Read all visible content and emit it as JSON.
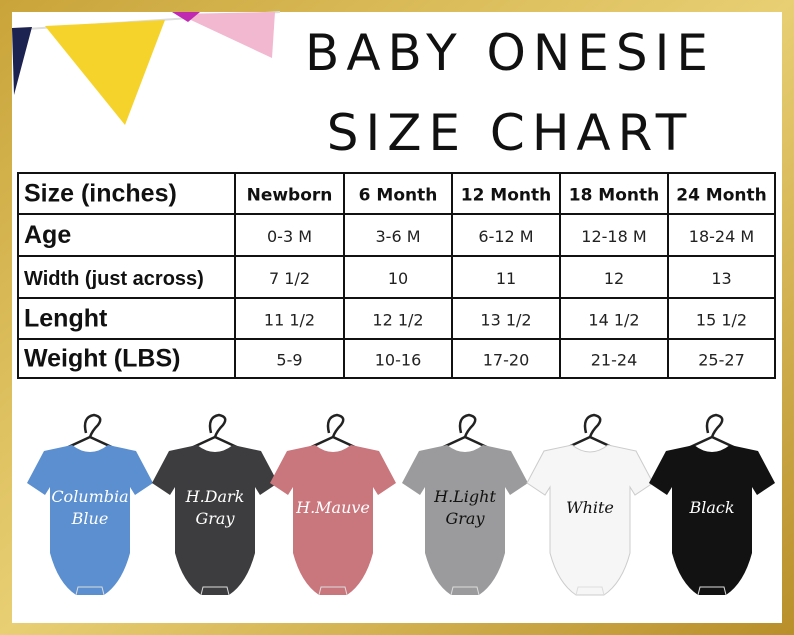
{
  "title": {
    "lines": [
      "BABY ONESIE",
      "SIZE CHART"
    ]
  },
  "table": {
    "header": [
      "Size (inches)",
      "Newborn",
      "6 Month",
      "12 Month",
      "18 Month",
      "24 Month"
    ],
    "rows": [
      [
        "Age",
        "0-3 M",
        "3-6 M",
        "6-12 M",
        "12-18 M",
        "18-24 M"
      ],
      [
        "Width (just across)",
        "7 1/2",
        "10",
        "11",
        "12",
        "13"
      ],
      [
        "Lenght",
        "11 1/2",
        "12 1/2",
        "13 1/2",
        "14 1/2",
        "15 1/2"
      ],
      [
        "Weight (LBS)",
        "5-9",
        "10-16",
        "17-20",
        "21-24",
        "25-27"
      ]
    ]
  },
  "onesies": [
    {
      "label_lines": [
        "Columbia",
        "Blue"
      ],
      "color": "#5b8fd0",
      "text_color": "#ffffff"
    },
    {
      "label_lines": [
        "H.Dark",
        "Gray"
      ],
      "color": "#3d3d3f",
      "text_color": "#ffffff"
    },
    {
      "label_lines": [
        "H.Mauve"
      ],
      "color": "#c9767d",
      "text_color": "#ffffff"
    },
    {
      "label_lines": [
        "H.Light",
        "Gray"
      ],
      "color": "#9b9b9d",
      "text_color": "#111111"
    },
    {
      "label_lines": [
        "White"
      ],
      "color": "#f6f6f6",
      "text_color": "#111111"
    },
    {
      "label_lines": [
        "Black"
      ],
      "color": "#121212",
      "text_color": "#ffffff"
    }
  ]
}
